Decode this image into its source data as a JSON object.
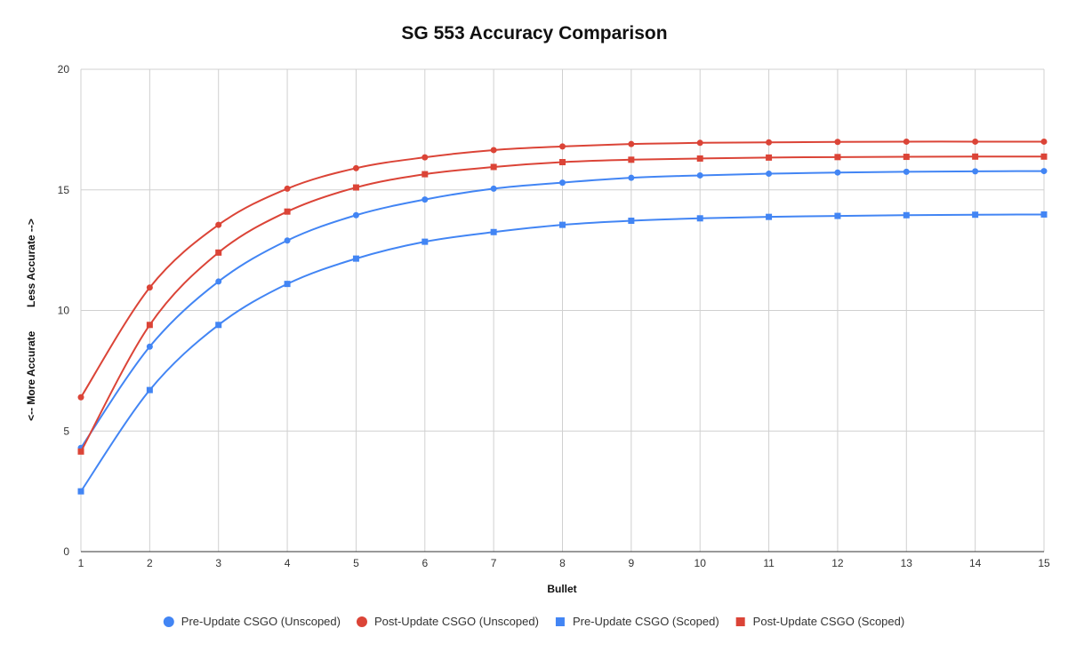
{
  "chart_data": {
    "type": "line",
    "title": "SG 553 Accuracy Comparison",
    "xlabel": "Bullet",
    "ylabel": "<-- More Accurate        Less Accurate -->",
    "x": [
      1,
      2,
      3,
      4,
      5,
      6,
      7,
      8,
      9,
      10,
      11,
      12,
      13,
      14,
      15
    ],
    "xlim": [
      1,
      15
    ],
    "ylim": [
      0,
      20
    ],
    "yticks": [
      0,
      5,
      10,
      15,
      20
    ],
    "grid": true,
    "smooth": true,
    "legend_position": "bottom",
    "series": [
      {
        "name": "Pre-Update CSGO (Unscoped)",
        "marker": "circle",
        "color": "#4285f4",
        "values": [
          4.3,
          8.5,
          11.2,
          12.9,
          13.95,
          14.6,
          15.05,
          15.3,
          15.5,
          15.6,
          15.67,
          15.72,
          15.75,
          15.77,
          15.78
        ]
      },
      {
        "name": "Post-Update CSGO (Unscoped)",
        "marker": "circle",
        "color": "#db4437",
        "values": [
          6.4,
          10.95,
          13.55,
          15.05,
          15.9,
          16.35,
          16.65,
          16.8,
          16.9,
          16.95,
          16.97,
          16.99,
          17.0,
          17.0,
          17.0
        ]
      },
      {
        "name": "Pre-Update CSGO (Scoped)",
        "marker": "square",
        "color": "#4285f4",
        "values": [
          2.5,
          6.7,
          9.4,
          11.1,
          12.15,
          12.85,
          13.25,
          13.55,
          13.72,
          13.82,
          13.88,
          13.92,
          13.95,
          13.97,
          13.98
        ]
      },
      {
        "name": "Post-Update CSGO (Scoped)",
        "marker": "square",
        "color": "#db4437",
        "values": [
          4.15,
          9.4,
          12.4,
          14.1,
          15.1,
          15.65,
          15.95,
          16.15,
          16.25,
          16.3,
          16.34,
          16.36,
          16.37,
          16.38,
          16.38
        ]
      }
    ]
  }
}
